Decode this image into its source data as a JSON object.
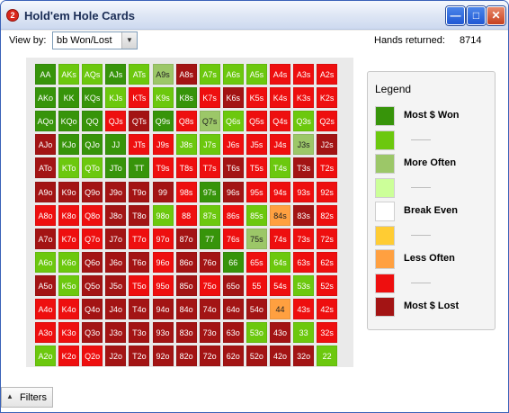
{
  "window": {
    "title": "Hold'em Hole Cards",
    "app_icon_label": "2",
    "buttons": {
      "minimize": "—",
      "maximize": "□",
      "close": "✕"
    }
  },
  "toolbar": {
    "view_by_label": "View by:",
    "view_by_value": "bb Won/Lost",
    "hands_label": "Hands returned:",
    "hands_value": "8714"
  },
  "colors": {
    "dg": "#37940a",
    "g": "#6cc80e",
    "lg": "#9cc768",
    "dr": "#a31414",
    "r": "#ee0f0f",
    "o": "#ffa040",
    "y": "#ffcc33",
    "w": "#ffffff",
    "pl": "#ccff99"
  },
  "matrix": {
    "rows": [
      [
        {
          "t": "AA",
          "c": "dg"
        },
        {
          "t": "AKs",
          "c": "g"
        },
        {
          "t": "AQs",
          "c": "g"
        },
        {
          "t": "AJs",
          "c": "dg"
        },
        {
          "t": "ATs",
          "c": "g"
        },
        {
          "t": "A9s",
          "c": "lg"
        },
        {
          "t": "A8s",
          "c": "dr"
        },
        {
          "t": "A7s",
          "c": "g"
        },
        {
          "t": "A6s",
          "c": "g"
        },
        {
          "t": "A5s",
          "c": "g"
        },
        {
          "t": "A4s",
          "c": "r"
        },
        {
          "t": "A3s",
          "c": "r"
        },
        {
          "t": "A2s",
          "c": "r"
        }
      ],
      [
        {
          "t": "AKo",
          "c": "dg"
        },
        {
          "t": "KK",
          "c": "dg"
        },
        {
          "t": "KQs",
          "c": "dg"
        },
        {
          "t": "KJs",
          "c": "g"
        },
        {
          "t": "KTs",
          "c": "r"
        },
        {
          "t": "K9s",
          "c": "g"
        },
        {
          "t": "K8s",
          "c": "dg"
        },
        {
          "t": "K7s",
          "c": "r"
        },
        {
          "t": "K6s",
          "c": "dr"
        },
        {
          "t": "K5s",
          "c": "r"
        },
        {
          "t": "K4s",
          "c": "r"
        },
        {
          "t": "K3s",
          "c": "r"
        },
        {
          "t": "K2s",
          "c": "r"
        }
      ],
      [
        {
          "t": "AQo",
          "c": "dg"
        },
        {
          "t": "KQo",
          "c": "dg"
        },
        {
          "t": "QQ",
          "c": "dg"
        },
        {
          "t": "QJs",
          "c": "r"
        },
        {
          "t": "QTs",
          "c": "dr"
        },
        {
          "t": "Q9s",
          "c": "dg"
        },
        {
          "t": "Q8s",
          "c": "r"
        },
        {
          "t": "Q7s",
          "c": "lg"
        },
        {
          "t": "Q6s",
          "c": "g"
        },
        {
          "t": "Q5s",
          "c": "r"
        },
        {
          "t": "Q4s",
          "c": "r"
        },
        {
          "t": "Q3s",
          "c": "g"
        },
        {
          "t": "Q2s",
          "c": "r"
        }
      ],
      [
        {
          "t": "AJo",
          "c": "dr"
        },
        {
          "t": "KJo",
          "c": "dg"
        },
        {
          "t": "QJo",
          "c": "dg"
        },
        {
          "t": "JJ",
          "c": "dg"
        },
        {
          "t": "JTs",
          "c": "r"
        },
        {
          "t": "J9s",
          "c": "r"
        },
        {
          "t": "J8s",
          "c": "g"
        },
        {
          "t": "J7s",
          "c": "g"
        },
        {
          "t": "J6s",
          "c": "r"
        },
        {
          "t": "J5s",
          "c": "r"
        },
        {
          "t": "J4s",
          "c": "r"
        },
        {
          "t": "J3s",
          "c": "lg"
        },
        {
          "t": "J2s",
          "c": "dr"
        }
      ],
      [
        {
          "t": "ATo",
          "c": "dr"
        },
        {
          "t": "KTo",
          "c": "g"
        },
        {
          "t": "QTo",
          "c": "g"
        },
        {
          "t": "JTo",
          "c": "dg"
        },
        {
          "t": "TT",
          "c": "dg"
        },
        {
          "t": "T9s",
          "c": "r"
        },
        {
          "t": "T8s",
          "c": "r"
        },
        {
          "t": "T7s",
          "c": "r"
        },
        {
          "t": "T6s",
          "c": "dr"
        },
        {
          "t": "T5s",
          "c": "r"
        },
        {
          "t": "T4s",
          "c": "g"
        },
        {
          "t": "T3s",
          "c": "dr"
        },
        {
          "t": "T2s",
          "c": "r"
        }
      ],
      [
        {
          "t": "A9o",
          "c": "dr"
        },
        {
          "t": "K9o",
          "c": "dr"
        },
        {
          "t": "Q9o",
          "c": "dr"
        },
        {
          "t": "J9o",
          "c": "dr"
        },
        {
          "t": "T9o",
          "c": "dr"
        },
        {
          "t": "99",
          "c": "dr"
        },
        {
          "t": "98s",
          "c": "r"
        },
        {
          "t": "97s",
          "c": "dg"
        },
        {
          "t": "96s",
          "c": "dr"
        },
        {
          "t": "95s",
          "c": "r"
        },
        {
          "t": "94s",
          "c": "r"
        },
        {
          "t": "93s",
          "c": "r"
        },
        {
          "t": "92s",
          "c": "r"
        }
      ],
      [
        {
          "t": "A8o",
          "c": "r"
        },
        {
          "t": "K8o",
          "c": "r"
        },
        {
          "t": "Q8o",
          "c": "r"
        },
        {
          "t": "J8o",
          "c": "dr"
        },
        {
          "t": "T8o",
          "c": "dr"
        },
        {
          "t": "98o",
          "c": "g"
        },
        {
          "t": "88",
          "c": "r"
        },
        {
          "t": "87s",
          "c": "g"
        },
        {
          "t": "86s",
          "c": "r"
        },
        {
          "t": "85s",
          "c": "g"
        },
        {
          "t": "84s",
          "c": "o"
        },
        {
          "t": "83s",
          "c": "dr"
        },
        {
          "t": "82s",
          "c": "r"
        }
      ],
      [
        {
          "t": "A7o",
          "c": "dr"
        },
        {
          "t": "K7o",
          "c": "r"
        },
        {
          "t": "Q7o",
          "c": "r"
        },
        {
          "t": "J7o",
          "c": "dr"
        },
        {
          "t": "T7o",
          "c": "r"
        },
        {
          "t": "97o",
          "c": "r"
        },
        {
          "t": "87o",
          "c": "dr"
        },
        {
          "t": "77",
          "c": "dg"
        },
        {
          "t": "76s",
          "c": "r"
        },
        {
          "t": "75s",
          "c": "lg"
        },
        {
          "t": "74s",
          "c": "r"
        },
        {
          "t": "73s",
          "c": "r"
        },
        {
          "t": "72s",
          "c": "r"
        }
      ],
      [
        {
          "t": "A6o",
          "c": "g"
        },
        {
          "t": "K6o",
          "c": "g"
        },
        {
          "t": "Q6o",
          "c": "dr"
        },
        {
          "t": "J6o",
          "c": "dr"
        },
        {
          "t": "T6o",
          "c": "dr"
        },
        {
          "t": "96o",
          "c": "r"
        },
        {
          "t": "86o",
          "c": "dr"
        },
        {
          "t": "76o",
          "c": "dr"
        },
        {
          "t": "66",
          "c": "dg"
        },
        {
          "t": "65s",
          "c": "r"
        },
        {
          "t": "64s",
          "c": "g"
        },
        {
          "t": "63s",
          "c": "r"
        },
        {
          "t": "62s",
          "c": "r"
        }
      ],
      [
        {
          "t": "A5o",
          "c": "dr"
        },
        {
          "t": "K5o",
          "c": "g"
        },
        {
          "t": "Q5o",
          "c": "dr"
        },
        {
          "t": "J5o",
          "c": "dr"
        },
        {
          "t": "T5o",
          "c": "r"
        },
        {
          "t": "95o",
          "c": "r"
        },
        {
          "t": "85o",
          "c": "dr"
        },
        {
          "t": "75o",
          "c": "r"
        },
        {
          "t": "65o",
          "c": "dr"
        },
        {
          "t": "55",
          "c": "r"
        },
        {
          "t": "54s",
          "c": "r"
        },
        {
          "t": "53s",
          "c": "g"
        },
        {
          "t": "52s",
          "c": "r"
        }
      ],
      [
        {
          "t": "A4o",
          "c": "r"
        },
        {
          "t": "K4o",
          "c": "r"
        },
        {
          "t": "Q4o",
          "c": "dr"
        },
        {
          "t": "J4o",
          "c": "dr"
        },
        {
          "t": "T4o",
          "c": "dr"
        },
        {
          "t": "94o",
          "c": "dr"
        },
        {
          "t": "84o",
          "c": "dr"
        },
        {
          "t": "74o",
          "c": "dr"
        },
        {
          "t": "64o",
          "c": "dr"
        },
        {
          "t": "54o",
          "c": "dr"
        },
        {
          "t": "44",
          "c": "o"
        },
        {
          "t": "43s",
          "c": "r"
        },
        {
          "t": "42s",
          "c": "r"
        }
      ],
      [
        {
          "t": "A3o",
          "c": "r"
        },
        {
          "t": "K3o",
          "c": "r"
        },
        {
          "t": "Q3o",
          "c": "dr"
        },
        {
          "t": "J3o",
          "c": "dr"
        },
        {
          "t": "T3o",
          "c": "dr"
        },
        {
          "t": "93o",
          "c": "dr"
        },
        {
          "t": "83o",
          "c": "dr"
        },
        {
          "t": "73o",
          "c": "dr"
        },
        {
          "t": "63o",
          "c": "dr"
        },
        {
          "t": "53o",
          "c": "g"
        },
        {
          "t": "43o",
          "c": "dr"
        },
        {
          "t": "33",
          "c": "g"
        },
        {
          "t": "32s",
          "c": "r"
        }
      ],
      [
        {
          "t": "A2o",
          "c": "g"
        },
        {
          "t": "K2o",
          "c": "r"
        },
        {
          "t": "Q2o",
          "c": "r"
        },
        {
          "t": "J2o",
          "c": "dr"
        },
        {
          "t": "T2o",
          "c": "dr"
        },
        {
          "t": "92o",
          "c": "dr"
        },
        {
          "t": "82o",
          "c": "dr"
        },
        {
          "t": "72o",
          "c": "dr"
        },
        {
          "t": "62o",
          "c": "dr"
        },
        {
          "t": "52o",
          "c": "dr"
        },
        {
          "t": "42o",
          "c": "dr"
        },
        {
          "t": "32o",
          "c": "dr"
        },
        {
          "t": "22",
          "c": "g"
        }
      ]
    ]
  },
  "legend": {
    "title": "Legend",
    "items": [
      {
        "color": "#37940a",
        "label": "Most $ Won"
      },
      {
        "color": "#6cc80e",
        "label": ""
      },
      {
        "color": "#9cc768",
        "label": "More Often"
      },
      {
        "color": "#ccff99",
        "label": ""
      },
      {
        "color": "#ffffff",
        "label": "Break Even"
      },
      {
        "color": "#ffcc33",
        "label": ""
      },
      {
        "color": "#ffa040",
        "label": "Less Often"
      },
      {
        "color": "#ee0f0f",
        "label": ""
      },
      {
        "color": "#a31414",
        "label": "Most $ Lost"
      }
    ]
  },
  "footer": {
    "filters_label": "Filters",
    "filters_icon": "caret-up-icon"
  }
}
